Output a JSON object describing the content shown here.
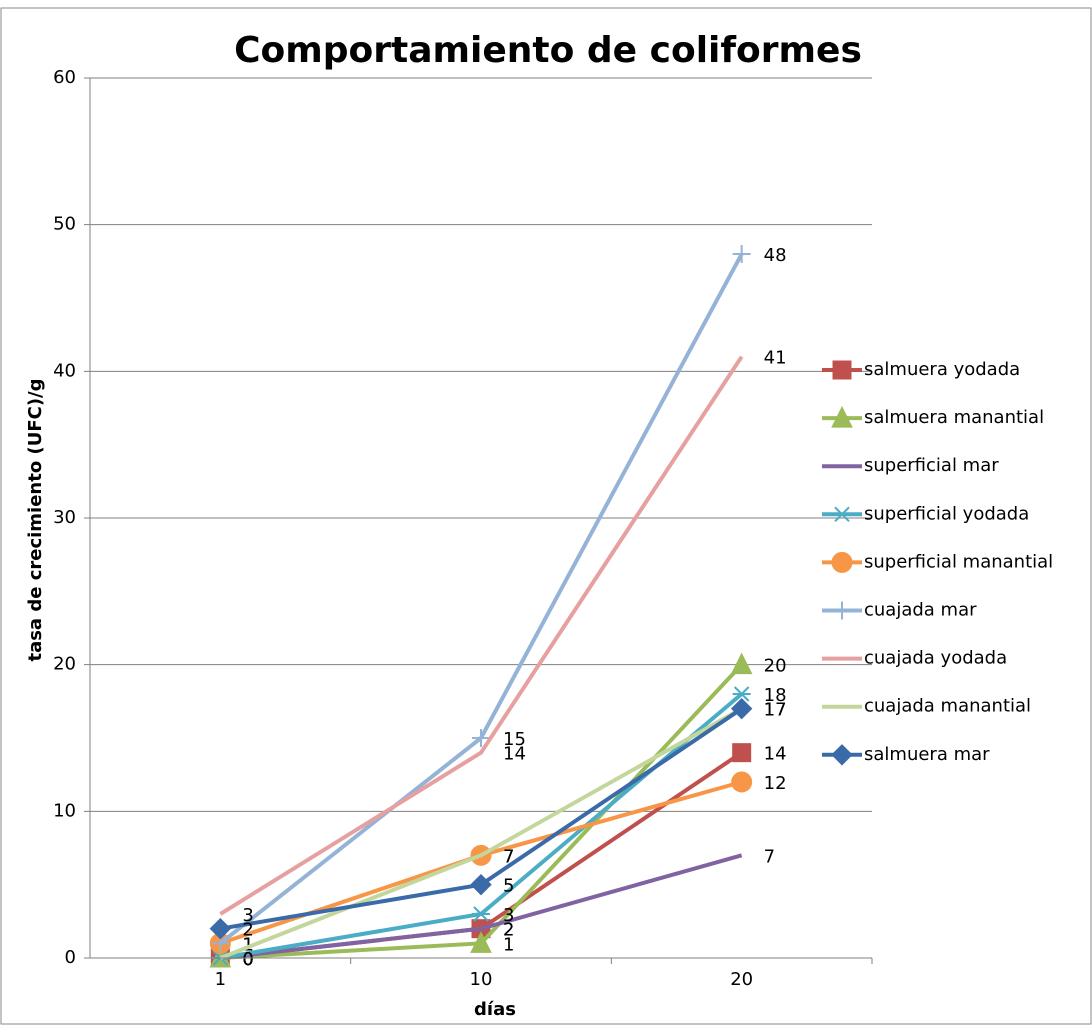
{
  "chart_data": {
    "type": "line",
    "title": "Comportamiento de coliformes",
    "x_label": "días",
    "y_label": "tasa de crecimiento (UFC)/g",
    "categories": [
      "1",
      "10",
      "20"
    ],
    "ylim": [
      0,
      60
    ],
    "yticks": [
      0,
      10,
      20,
      30,
      40,
      50,
      60
    ],
    "grid": true,
    "legend": "right",
    "series": [
      {
        "name": "salmuera yodada",
        "color": "#c0504d",
        "marker": "square",
        "values": [
          0,
          2,
          14
        ]
      },
      {
        "name": "salmuera manantial",
        "color": "#9bbb59",
        "marker": "triangle",
        "values": [
          0,
          1,
          20
        ]
      },
      {
        "name": "superficial mar",
        "color": "#8064a2",
        "marker": "none",
        "values": [
          0,
          2,
          7
        ]
      },
      {
        "name": "superficial yodada",
        "color": "#4bacc6",
        "marker": "asterisk",
        "values": [
          0,
          3,
          18
        ]
      },
      {
        "name": "superficial manantial",
        "color": "#f79646",
        "marker": "circle",
        "values": [
          1,
          7,
          12
        ]
      },
      {
        "name": "cuajada mar",
        "color": "#95b3d7",
        "marker": "plus",
        "values": [
          1,
          15,
          48
        ]
      },
      {
        "name": "cuajada yodada",
        "color": "#e6a0a0",
        "marker": "none",
        "values": [
          3,
          14,
          41
        ]
      },
      {
        "name": "cuajada manantial",
        "color": "#c3d69b",
        "marker": "none",
        "values": [
          0,
          7,
          17
        ]
      },
      {
        "name": "salmuera  mar",
        "color": "#3a6aa8",
        "marker": "diamond",
        "values": [
          2,
          5,
          17
        ]
      }
    ]
  }
}
